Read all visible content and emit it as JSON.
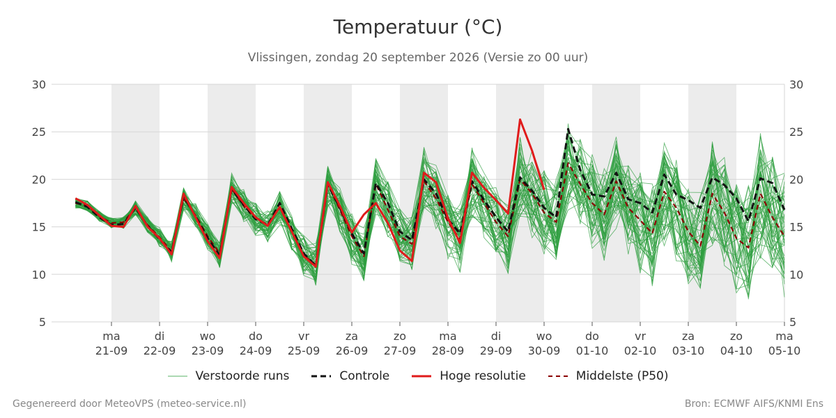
{
  "title": "Temperatuur (°C)",
  "subtitle": "Vlissingen, zondag 20 september 2026 (Versie zo 00 uur)",
  "footer_left": "Gegenereerd door MeteoVPS (meteo-service.nl)",
  "footer_right": "Bron: ECMWF AIFS/KNMI Ens",
  "legend": [
    {
      "label": "Verstoorde runs",
      "color": "#2e9e3e",
      "style": "thin"
    },
    {
      "label": "Controle",
      "color": "#111111",
      "style": "dashed"
    },
    {
      "label": "Hoge resolutie",
      "color": "#e01b1b",
      "style": "solid"
    },
    {
      "label": "Middelste (P50)",
      "color": "#8b0000",
      "style": "dashed"
    }
  ],
  "chart_data": {
    "type": "line",
    "x_unit": "days (0 = start 20-09 21:00)",
    "ylim": [
      5,
      30
    ],
    "yticks": [
      5,
      10,
      15,
      20,
      25,
      30
    ],
    "grid": true,
    "x_ticks": [
      {
        "day": "ma",
        "date": "21-09"
      },
      {
        "day": "di",
        "date": "22-09"
      },
      {
        "day": "wo",
        "date": "23-09"
      },
      {
        "day": "do",
        "date": "24-09"
      },
      {
        "day": "vr",
        "date": "25-09"
      },
      {
        "day": "za",
        "date": "26-09"
      },
      {
        "day": "zo",
        "date": "27-09"
      },
      {
        "day": "ma",
        "date": "28-09"
      },
      {
        "day": "di",
        "date": "29-09"
      },
      {
        "day": "wo",
        "date": "30-09"
      },
      {
        "day": "do",
        "date": "01-10"
      },
      {
        "day": "vr",
        "date": "02-10"
      },
      {
        "day": "za",
        "date": "03-10"
      },
      {
        "day": "zo",
        "date": "04-10"
      },
      {
        "day": "ma",
        "date": "05-10"
      }
    ],
    "shaded_days": [
      0,
      2,
      4,
      6,
      8,
      10,
      12
    ],
    "series": [
      {
        "name": "Hoge resolutie",
        "color": "#e01b1b",
        "x": [
          -0.75,
          -0.5,
          -0.25,
          0,
          0.25,
          0.5,
          0.75,
          1,
          1.25,
          1.5,
          1.75,
          2,
          2.25,
          2.5,
          2.75,
          3,
          3.25,
          3.5,
          3.75,
          4,
          4.25,
          4.5,
          4.75,
          5,
          5.25,
          5.5,
          5.75,
          6,
          6.25,
          6.5,
          6.75,
          7,
          7.25,
          7.5,
          7.75,
          8,
          8.25,
          8.5,
          8.75,
          9
        ],
        "y": [
          18.0,
          17.3,
          16.2,
          15.1,
          15.0,
          17.2,
          15.0,
          13.8,
          12.1,
          18.5,
          16.0,
          13.5,
          11.7,
          19.2,
          17.5,
          16.0,
          15.1,
          17.1,
          14.5,
          11.9,
          10.8,
          19.7,
          17.2,
          14.4,
          16.3,
          17.5,
          15.4,
          12.5,
          11.4,
          20.7,
          19.7,
          15.9,
          13.3,
          20.7,
          19.1,
          17.8,
          16.4,
          26.3,
          23.0,
          18.9
        ]
      },
      {
        "name": "Controle",
        "color": "#111111",
        "x": [
          -0.75,
          -0.5,
          -0.25,
          0,
          0.25,
          0.5,
          0.75,
          1,
          1.25,
          1.5,
          1.75,
          2,
          2.25,
          2.5,
          2.75,
          3,
          3.25,
          3.5,
          3.75,
          4,
          4.25,
          4.5,
          4.75,
          5,
          5.25,
          5.5,
          5.75,
          6,
          6.25,
          6.5,
          6.75,
          7,
          7.25,
          7.5,
          7.75,
          8,
          8.25,
          8.5,
          8.75,
          9,
          9.25,
          9.5,
          9.75,
          10,
          10.25,
          10.5,
          10.75,
          11,
          11.25,
          11.5,
          11.75,
          12,
          12.25,
          12.5,
          12.75,
          13,
          13.25,
          13.5,
          13.75,
          14
        ],
        "y": [
          17.6,
          17.1,
          16.0,
          15.2,
          15.3,
          17.0,
          15.1,
          13.7,
          12.3,
          18.2,
          16.1,
          13.8,
          12.0,
          19.0,
          17.3,
          15.8,
          15.2,
          17.5,
          14.8,
          12.2,
          10.9,
          19.5,
          17.0,
          14.3,
          12.2,
          19.6,
          17.5,
          14.5,
          13.6,
          20.0,
          18.5,
          15.8,
          14.3,
          19.8,
          17.8,
          16.0,
          14.5,
          20.2,
          18.8,
          17.0,
          16.0,
          25.3,
          21.0,
          18.4,
          18.2,
          20.7,
          17.9,
          17.5,
          16.5,
          20.5,
          18.4,
          17.8,
          17.0,
          20.2,
          19.4,
          18.0,
          15.6,
          20.1,
          19.6,
          16.8
        ]
      },
      {
        "name": "Middelste (P50)",
        "color": "#8b0000",
        "x": [
          -0.75,
          -0.5,
          -0.25,
          0,
          0.25,
          0.5,
          0.75,
          1,
          1.25,
          1.5,
          1.75,
          2,
          2.25,
          2.5,
          2.75,
          3,
          3.25,
          3.5,
          3.75,
          4,
          4.25,
          4.5,
          4.75,
          5,
          5.25,
          5.5,
          5.75,
          6,
          6.25,
          6.5,
          6.75,
          7,
          7.25,
          7.5,
          7.75,
          8,
          8.25,
          8.5,
          8.75,
          9,
          9.25,
          9.5,
          9.75,
          10,
          10.25,
          10.5,
          10.75,
          11,
          11.25,
          11.5,
          11.75,
          12,
          12.25,
          12.5,
          12.75,
          13,
          13.25,
          13.5,
          13.75,
          14
        ],
        "y": [
          17.5,
          17.2,
          16.1,
          15.4,
          15.5,
          17.0,
          15.2,
          13.9,
          12.4,
          18.0,
          16.2,
          14.0,
          12.2,
          19.0,
          17.2,
          15.8,
          15.3,
          17.0,
          14.5,
          12.0,
          11.0,
          19.5,
          16.8,
          14.0,
          11.9,
          19.5,
          16.8,
          14.0,
          13.2,
          19.8,
          18.0,
          15.5,
          13.7,
          19.5,
          17.5,
          15.5,
          14.0,
          20.0,
          18.5,
          16.5,
          15.5,
          21.7,
          19.5,
          17.5,
          16.3,
          19.8,
          17.0,
          15.7,
          14.3,
          18.7,
          17.0,
          14.5,
          13.0,
          18.5,
          16.5,
          13.8,
          12.8,
          18.5,
          16.0,
          14.0
        ]
      },
      {
        "name": "Verstoorde runs",
        "color": "#2e9e3e",
        "members": 50
      }
    ]
  }
}
